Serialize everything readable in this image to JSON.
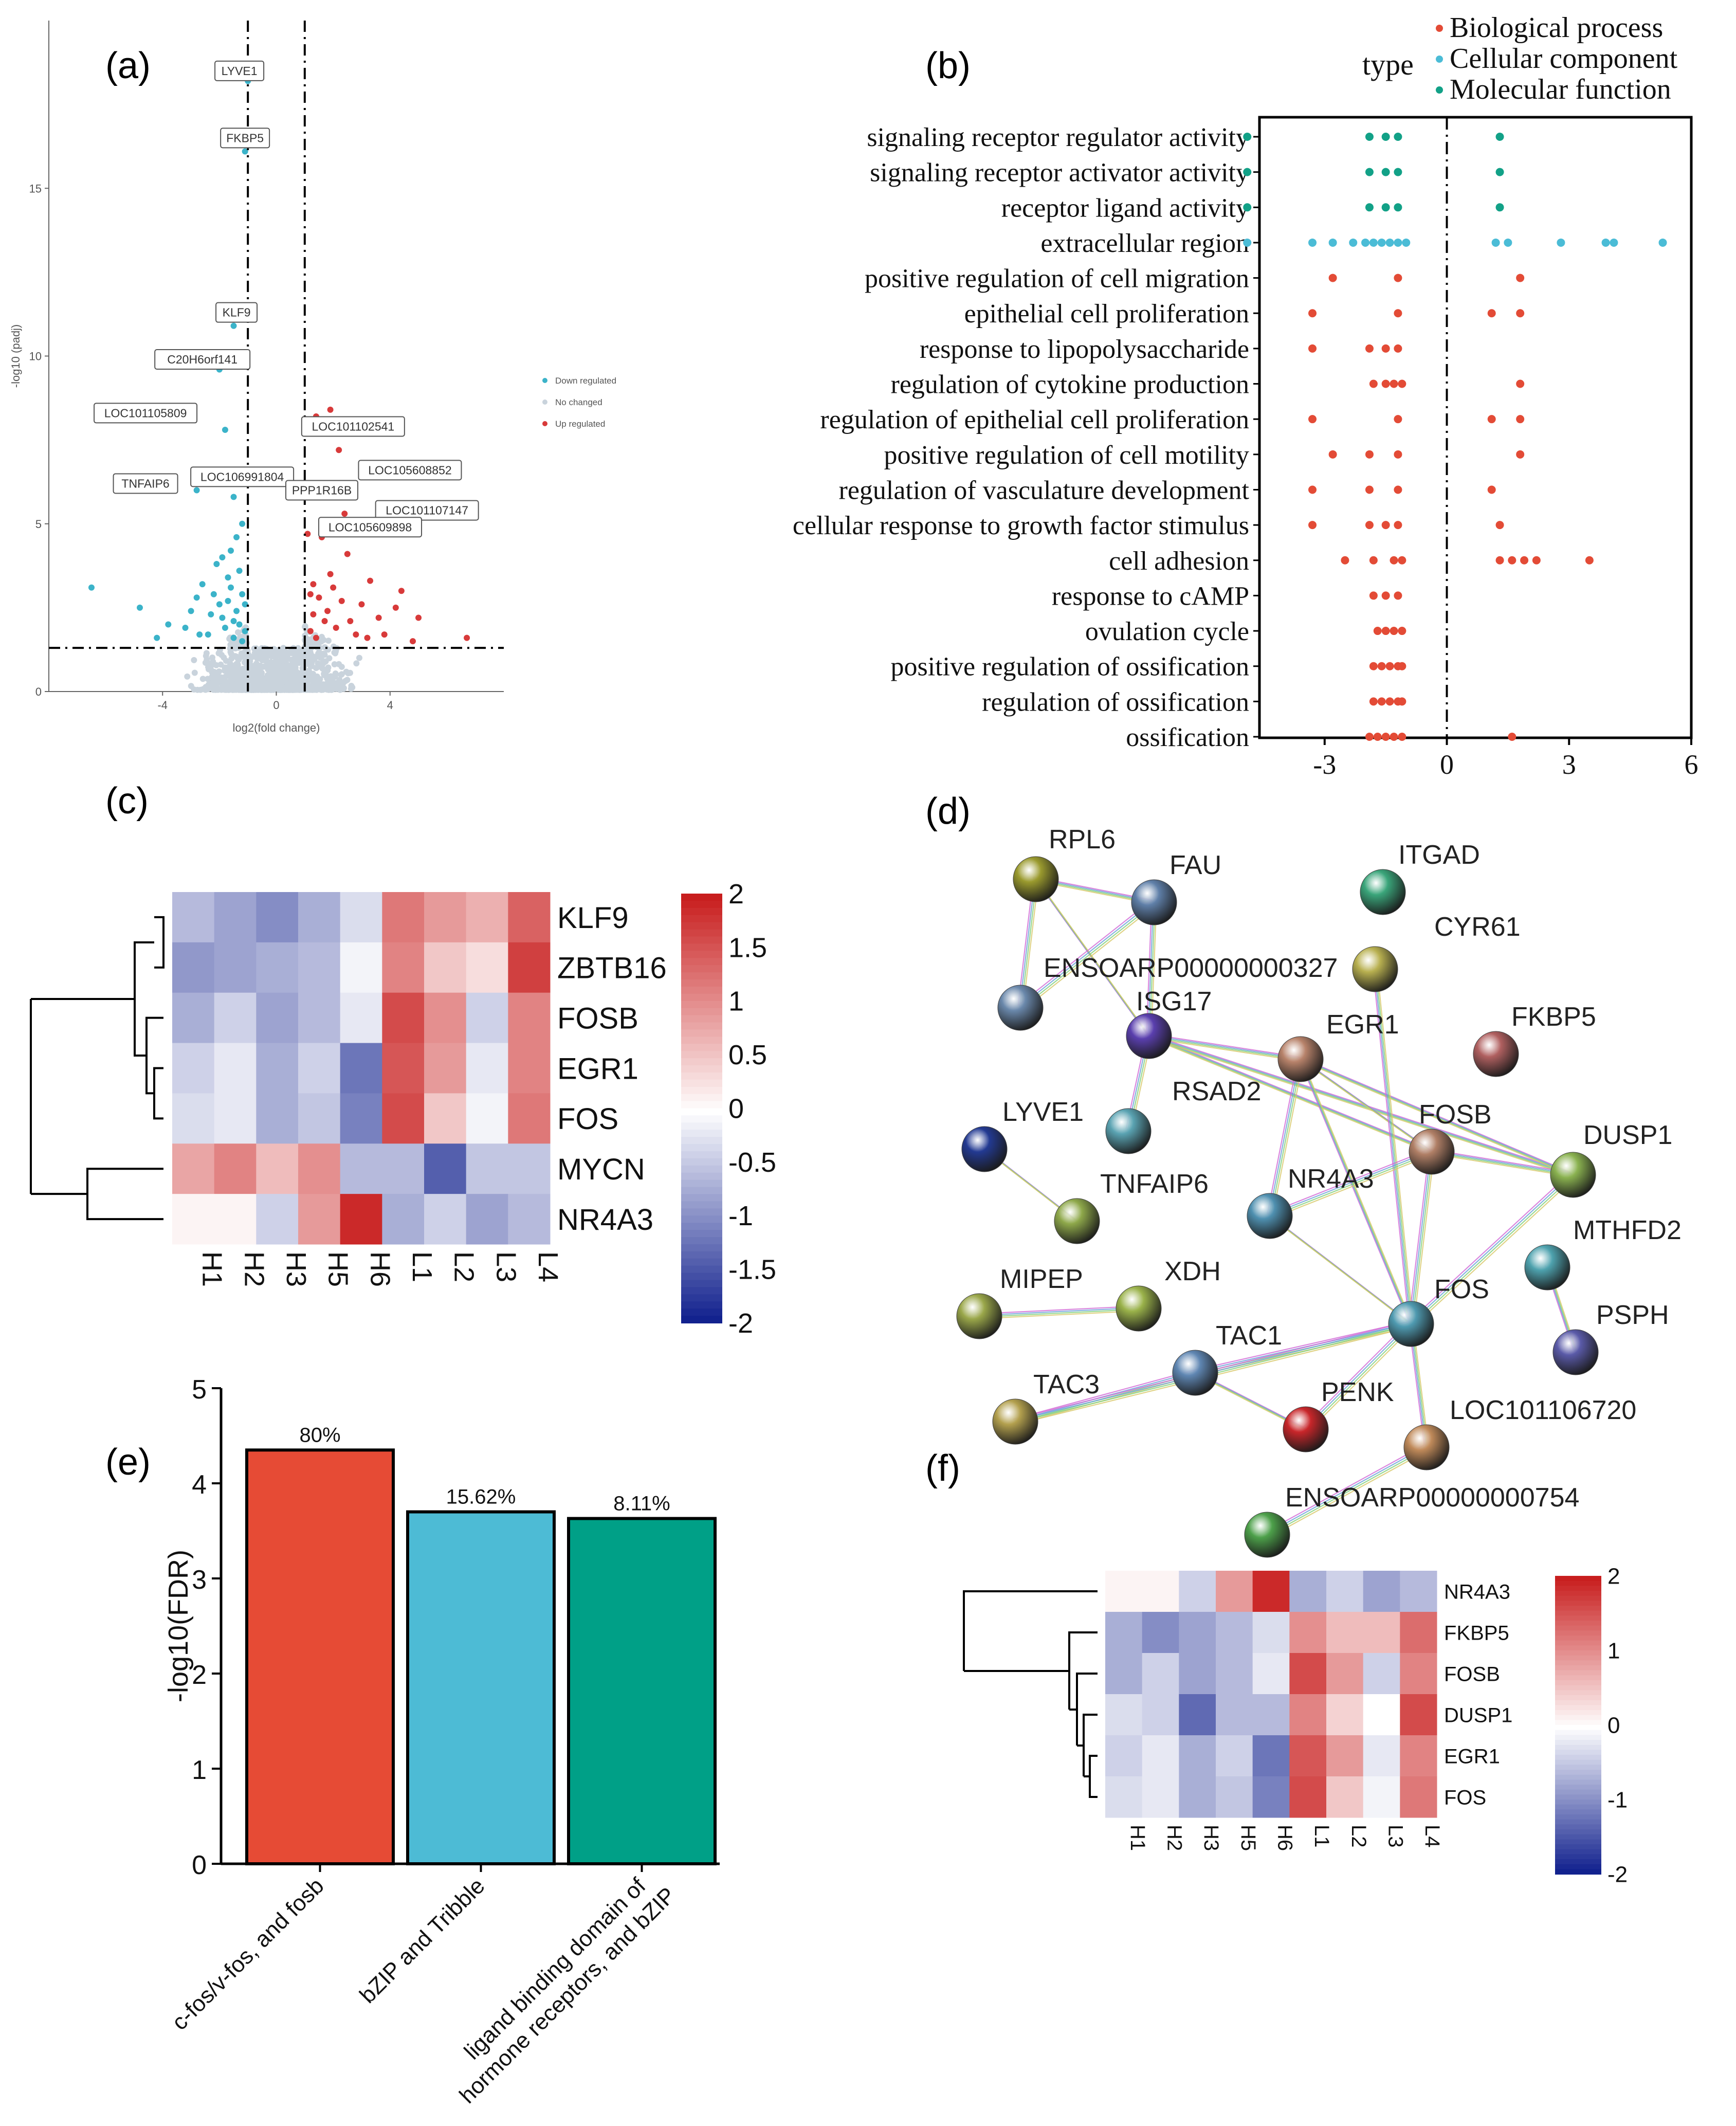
{
  "panels": {
    "a": "(a)",
    "b": "(b)",
    "c": "(c)",
    "d": "(d)",
    "e": "(e)",
    "f": "(f)"
  },
  "colors": {
    "down": "#3bb3c9",
    "nochange": "#c9d3dc",
    "up": "#d83a3a",
    "bio": "#e34b36",
    "cell": "#4bbcd6",
    "mol": "#12a187",
    "bar1": "#e64b35",
    "bar2": "#4dbbd5",
    "bar3": "#00a087",
    "heat_low": "#0a1a8a",
    "heat_mid": "#ffffff",
    "heat_high": "#c81e1e"
  },
  "chart_data": [
    {
      "id": "a",
      "type": "scatter",
      "title": "",
      "xlabel": "log2(fold change)",
      "ylabel": "-log10 (padj)",
      "xlim": [
        -8,
        8
      ],
      "ylim": [
        0,
        20
      ],
      "xticks": [
        "-4",
        "0",
        "4"
      ],
      "xtick_values": [
        -4,
        0,
        4
      ],
      "yticks": [
        "0",
        "5",
        "10",
        "15"
      ],
      "ytick_values": [
        0,
        5,
        10,
        15
      ],
      "vlines": [
        -1,
        1
      ],
      "hline": 1.3,
      "legend": [
        "Down regulated",
        "No changed",
        "Up regulated"
      ],
      "legend_position": "right",
      "labels": [
        {
          "text": "LYVE1",
          "x": -1.3,
          "y": 18.5
        },
        {
          "text": "FKBP5",
          "x": -1.1,
          "y": 16.5
        },
        {
          "text": "KLF9",
          "x": -1.4,
          "y": 11.3
        },
        {
          "text": "C20H6orf141",
          "x": -2.6,
          "y": 9.9
        },
        {
          "text": "LOC101105809",
          "x": -4.6,
          "y": 8.3
        },
        {
          "text": "LOC101102541",
          "x": 2.7,
          "y": 7.9
        },
        {
          "text": "TNFAIP6",
          "x": -4.6,
          "y": 6.2
        },
        {
          "text": "LOC106991804",
          "x": -1.2,
          "y": 6.4
        },
        {
          "text": "LOC105608852",
          "x": 4.7,
          "y": 6.6
        },
        {
          "text": "PPP1R16B",
          "x": 1.6,
          "y": 6.0
        },
        {
          "text": "LOC101107147",
          "x": 5.3,
          "y": 5.4
        },
        {
          "text": "LOC105609898",
          "x": 3.3,
          "y": 4.9
        }
      ],
      "down_points": [
        [
          -1.0,
          18.2
        ],
        [
          -1.1,
          16.1
        ],
        [
          -1.5,
          10.9
        ],
        [
          -2.0,
          9.6
        ],
        [
          -1.8,
          7.8
        ],
        [
          -1.7,
          6.5
        ],
        [
          -2.8,
          6.0
        ],
        [
          -1.5,
          5.8
        ],
        [
          -6.5,
          3.1
        ],
        [
          -4.8,
          2.5
        ],
        [
          -3.8,
          2.0
        ],
        [
          -2.8,
          2.8
        ],
        [
          -2.6,
          3.2
        ],
        [
          -2.2,
          2.9
        ],
        [
          -2.0,
          2.6
        ],
        [
          -1.9,
          2.2
        ],
        [
          -1.7,
          2.7
        ],
        [
          -1.6,
          3.1
        ],
        [
          -1.4,
          2.4
        ],
        [
          -1.3,
          2.0
        ],
        [
          -1.2,
          2.9
        ],
        [
          -1.1,
          1.8
        ],
        [
          -1.5,
          1.6
        ],
        [
          -1.8,
          1.9
        ],
        [
          -2.4,
          1.7
        ],
        [
          -3.2,
          1.9
        ],
        [
          -4.2,
          1.6
        ],
        [
          -1.3,
          3.6
        ],
        [
          -1.6,
          4.2
        ],
        [
          -1.9,
          4.0
        ],
        [
          -2.1,
          3.8
        ],
        [
          -1.4,
          4.6
        ],
        [
          -1.2,
          5.0
        ],
        [
          -1.1,
          2.6
        ],
        [
          -1.7,
          3.4
        ],
        [
          -2.3,
          2.3
        ],
        [
          -3.0,
          2.4
        ],
        [
          -2.7,
          1.7
        ],
        [
          -1.5,
          2.1
        ],
        [
          -1.2,
          1.5
        ]
      ],
      "up_points": [
        [
          1.4,
          8.2
        ],
        [
          1.9,
          8.4
        ],
        [
          2.2,
          7.2
        ],
        [
          1.3,
          5.9
        ],
        [
          2.4,
          5.3
        ],
        [
          1.1,
          4.7
        ],
        [
          1.6,
          4.6
        ],
        [
          1.3,
          3.2
        ],
        [
          1.5,
          2.8
        ],
        [
          1.8,
          2.4
        ],
        [
          2.0,
          3.1
        ],
        [
          2.3,
          2.7
        ],
        [
          2.6,
          2.1
        ],
        [
          3.0,
          2.6
        ],
        [
          3.3,
          3.3
        ],
        [
          3.6,
          2.2
        ],
        [
          4.2,
          2.5
        ],
        [
          4.4,
          3.0
        ],
        [
          5.0,
          2.2
        ],
        [
          6.7,
          1.6
        ],
        [
          1.2,
          1.8
        ],
        [
          1.4,
          1.6
        ],
        [
          1.7,
          2.1
        ],
        [
          2.1,
          1.9
        ],
        [
          2.8,
          1.7
        ],
        [
          3.8,
          1.7
        ],
        [
          1.3,
          2.3
        ],
        [
          1.9,
          3.5
        ],
        [
          2.5,
          4.1
        ],
        [
          1.2,
          2.9
        ],
        [
          3.2,
          1.6
        ],
        [
          4.8,
          1.5
        ]
      ]
    },
    {
      "id": "b",
      "type": "scatter",
      "title": "",
      "xlabel": "",
      "ylabel": "",
      "xlim": [
        -4.6,
        6
      ],
      "xticks": [
        "-3",
        "0",
        "3",
        "6"
      ],
      "xtick_values": [
        -3,
        0,
        3,
        6
      ],
      "vline": 0,
      "legend_title": "type",
      "legend": [
        "Biological process",
        "Cellular component",
        "Molecular function"
      ],
      "legend_position": "top-right",
      "categories": [
        "signaling receptor regulator activity",
        "signaling receptor activator activity",
        "receptor ligand activity",
        "extracellular region",
        "positive regulation of cell migration",
        "epithelial cell proliferation",
        "response to lipopolysaccharide",
        "regulation of cytokine production",
        "regulation of epithelial cell proliferation",
        "positive regulation of cell motility",
        "regulation of vasculature development",
        "cellular response to growth factor stimulus",
        "cell adhesion",
        "response to cAMP",
        "ovulation cycle",
        "positive regulation of ossification",
        "regulation of ossification",
        "ossification"
      ],
      "category_types": [
        "mol",
        "mol",
        "mol",
        "cell",
        "bio",
        "bio",
        "bio",
        "bio",
        "bio",
        "bio",
        "bio",
        "bio",
        "bio",
        "bio",
        "bio",
        "bio",
        "bio",
        "bio"
      ],
      "values": [
        [
          -4.9,
          -1.9,
          -1.5,
          -1.2,
          1.3
        ],
        [
          -4.9,
          -1.9,
          -1.5,
          -1.2,
          1.3
        ],
        [
          -4.9,
          -1.9,
          -1.5,
          -1.2,
          1.3
        ],
        [
          -4.9,
          -3.3,
          -2.8,
          -2.3,
          -2.0,
          -1.8,
          -1.6,
          -1.4,
          -1.2,
          -1.0,
          1.2,
          1.5,
          2.8,
          3.9,
          4.1,
          5.3
        ],
        [
          -2.8,
          -1.2,
          1.8
        ],
        [
          -3.3,
          -1.2,
          1.1,
          1.8
        ],
        [
          -3.3,
          -1.9,
          -1.5,
          -1.2
        ],
        [
          -1.8,
          -1.5,
          -1.3,
          -1.1,
          1.8
        ],
        [
          -3.3,
          -1.2,
          1.1,
          1.8
        ],
        [
          -2.8,
          -1.9,
          -1.2,
          1.8
        ],
        [
          -3.3,
          -1.9,
          -1.2,
          1.1
        ],
        [
          -3.3,
          -1.9,
          -1.5,
          -1.2,
          1.3
        ],
        [
          -2.5,
          -1.8,
          -1.3,
          -1.1,
          1.3,
          1.6,
          1.9,
          2.2,
          3.5
        ],
        [
          -1.8,
          -1.5,
          -1.2
        ],
        [
          -1.7,
          -1.5,
          -1.3,
          -1.1
        ],
        [
          -1.8,
          -1.6,
          -1.4,
          -1.2,
          -1.1
        ],
        [
          -1.8,
          -1.6,
          -1.4,
          -1.2,
          -1.1
        ],
        [
          -1.9,
          -1.7,
          -1.5,
          -1.3,
          -1.1,
          1.6
        ]
      ]
    },
    {
      "id": "c",
      "type": "heatmap",
      "title": "",
      "rows": [
        "KLF9",
        "ZBTB16",
        "FOSB",
        "EGR1",
        "FOS",
        "MYCN",
        "NR4A3"
      ],
      "columns": [
        "H1",
        "H2",
        "H3",
        "H5",
        "H6",
        "L1",
        "L2",
        "L3",
        "L4"
      ],
      "values": [
        [
          -0.6,
          -0.8,
          -1.0,
          -0.7,
          -0.3,
          1.2,
          0.9,
          0.7,
          1.4
        ],
        [
          -0.9,
          -0.8,
          -0.7,
          -0.6,
          -0.1,
          1.1,
          0.5,
          0.3,
          1.7
        ],
        [
          -0.7,
          -0.4,
          -0.8,
          -0.6,
          -0.2,
          1.6,
          1.0,
          -0.4,
          1.1
        ],
        [
          -0.4,
          -0.2,
          -0.7,
          -0.4,
          -1.2,
          1.5,
          0.9,
          -0.2,
          1.1
        ],
        [
          -0.3,
          -0.2,
          -0.7,
          -0.5,
          -1.1,
          1.6,
          0.5,
          -0.1,
          1.2
        ],
        [
          0.8,
          1.1,
          0.6,
          1.0,
          -0.6,
          -0.6,
          -1.4,
          -0.5,
          -0.5
        ],
        [
          0.1,
          0.1,
          -0.4,
          0.9,
          1.9,
          -0.7,
          -0.4,
          -0.8,
          -0.6
        ]
      ],
      "colorbar_ticks": [
        "2",
        "1.5",
        "1",
        "0.5",
        "0",
        "-0.5",
        "-1",
        "-1.5",
        "-2"
      ],
      "colorbar_values": [
        2,
        1.5,
        1,
        0.5,
        0,
        -0.5,
        -1,
        -1.5,
        -2
      ],
      "vmin": -2,
      "vmax": 2
    },
    {
      "id": "d",
      "type": "table",
      "title": "",
      "nodes": [
        {
          "name": "RPL6",
          "color": "#9a9a2e"
        },
        {
          "name": "FAU",
          "color": "#5f7fa8"
        },
        {
          "name": "ITGAD",
          "color": "#3aa57a"
        },
        {
          "name": "CYR61",
          "color": "#b8b050"
        },
        {
          "name": "ENSOARP00000000327",
          "color": "#6a88ab"
        },
        {
          "name": "ISG17",
          "color": "#5a3fae"
        },
        {
          "name": "EGR1",
          "color": "#b7826a"
        },
        {
          "name": "FKBP5",
          "color": "#b06060"
        },
        {
          "name": "LYVE1",
          "color": "#233a92"
        },
        {
          "name": "RSAD2",
          "color": "#5aa3b2"
        },
        {
          "name": "FOSB",
          "color": "#b07f66"
        },
        {
          "name": "DUSP1",
          "color": "#8ab250"
        },
        {
          "name": "TNFAIP6",
          "color": "#8ea84a"
        },
        {
          "name": "NR4A3",
          "color": "#4f90b0"
        },
        {
          "name": "MTHFD2",
          "color": "#4ea2ae"
        },
        {
          "name": "XDH",
          "color": "#9ab24a"
        },
        {
          "name": "MIPEP",
          "color": "#9aa74a"
        },
        {
          "name": "FOS",
          "color": "#4f9ab0"
        },
        {
          "name": "PSPH",
          "color": "#5a5aa8"
        },
        {
          "name": "TAC1",
          "color": "#5f86b2"
        },
        {
          "name": "TAC3",
          "color": "#b3a04e"
        },
        {
          "name": "PENK",
          "color": "#c8262a"
        },
        {
          "name": "LOC101106720",
          "color": "#c08a5a"
        },
        {
          "name": "ENSOARP00000000754",
          "color": "#4da04a"
        }
      ],
      "edges": [
        [
          "RPL6",
          "FAU"
        ],
        [
          "RPL6",
          "ENSOARP00000000327"
        ],
        [
          "RPL6",
          "ISG17"
        ],
        [
          "FAU",
          "ENSOARP00000000327"
        ],
        [
          "FAU",
          "ISG17"
        ],
        [
          "ISG17",
          "RSAD2"
        ],
        [
          "ISG17",
          "EGR1"
        ],
        [
          "ISG17",
          "FOSB"
        ],
        [
          "ISG17",
          "DUSP1"
        ],
        [
          "EGR1",
          "FOSB"
        ],
        [
          "EGR1",
          "DUSP1"
        ],
        [
          "EGR1",
          "NR4A3"
        ],
        [
          "EGR1",
          "FOS"
        ],
        [
          "CYR61",
          "FOS"
        ],
        [
          "FOSB",
          "DUSP1"
        ],
        [
          "FOSB",
          "NR4A3"
        ],
        [
          "FOSB",
          "FOS"
        ],
        [
          "NR4A3",
          "FOS"
        ],
        [
          "DUSP1",
          "FOS"
        ],
        [
          "LYVE1",
          "TNFAIP6"
        ],
        [
          "MTHFD2",
          "PSPH"
        ],
        [
          "MIPEP",
          "XDH"
        ],
        [
          "TAC1",
          "TAC3"
        ],
        [
          "TAC1",
          "PENK"
        ],
        [
          "TAC1",
          "FOS"
        ],
        [
          "FOS",
          "PENK"
        ],
        [
          "FOS",
          "LOC101106720"
        ],
        [
          "LOC101106720",
          "ENSOARP00000000754"
        ],
        [
          "TAC3",
          "FOS"
        ]
      ]
    },
    {
      "id": "e",
      "type": "bar",
      "title": "",
      "categories": [
        "c-fos/v-fos, and fosb",
        "bZIP and Tribble",
        "ligand binding domain of hormone receptors, and bZIP"
      ],
      "category_lines": [
        [
          "c-fos/v-fos, and fosb"
        ],
        [
          "bZIP and Tribble"
        ],
        [
          "ligand binding domain of",
          "hormone receptors, and bZIP"
        ]
      ],
      "values": [
        4.35,
        3.7,
        3.63
      ],
      "data_labels": [
        "80%",
        "15.62%",
        "8.11%"
      ],
      "xlabel": "",
      "ylabel": "-log10(FDR)",
      "ylim": [
        0,
        5
      ],
      "yticks": [
        "0",
        "1",
        "2",
        "3",
        "4",
        "5"
      ],
      "ytick_values": [
        0,
        1,
        2,
        3,
        4,
        5
      ]
    },
    {
      "id": "f",
      "type": "heatmap",
      "title": "",
      "rows": [
        "NR4A3",
        "FKBP5",
        "FOSB",
        "DUSP1",
        "EGR1",
        "FOS"
      ],
      "columns": [
        "H1",
        "H2",
        "H3",
        "H5",
        "H6",
        "L1",
        "L2",
        "L3",
        "L4"
      ],
      "values": [
        [
          0.1,
          0.1,
          -0.4,
          0.9,
          1.9,
          -0.7,
          -0.4,
          -0.8,
          -0.6
        ],
        [
          -0.7,
          -1.0,
          -0.8,
          -0.6,
          -0.3,
          1.0,
          0.6,
          0.6,
          1.3
        ],
        [
          -0.7,
          -0.4,
          -0.8,
          -0.6,
          -0.2,
          1.6,
          0.9,
          -0.4,
          1.1
        ],
        [
          -0.3,
          -0.4,
          -1.3,
          -0.6,
          -0.6,
          1.1,
          0.4,
          0.0,
          1.6
        ],
        [
          -0.4,
          -0.2,
          -0.7,
          -0.4,
          -1.2,
          1.5,
          0.9,
          -0.2,
          1.1
        ],
        [
          -0.3,
          -0.2,
          -0.7,
          -0.5,
          -1.1,
          1.6,
          0.5,
          -0.1,
          1.2
        ]
      ],
      "colorbar_ticks": [
        "2",
        "1",
        "0",
        "-1",
        "-2"
      ],
      "colorbar_values": [
        2,
        1,
        0,
        -1,
        -2
      ],
      "vmin": -2,
      "vmax": 2
    }
  ]
}
